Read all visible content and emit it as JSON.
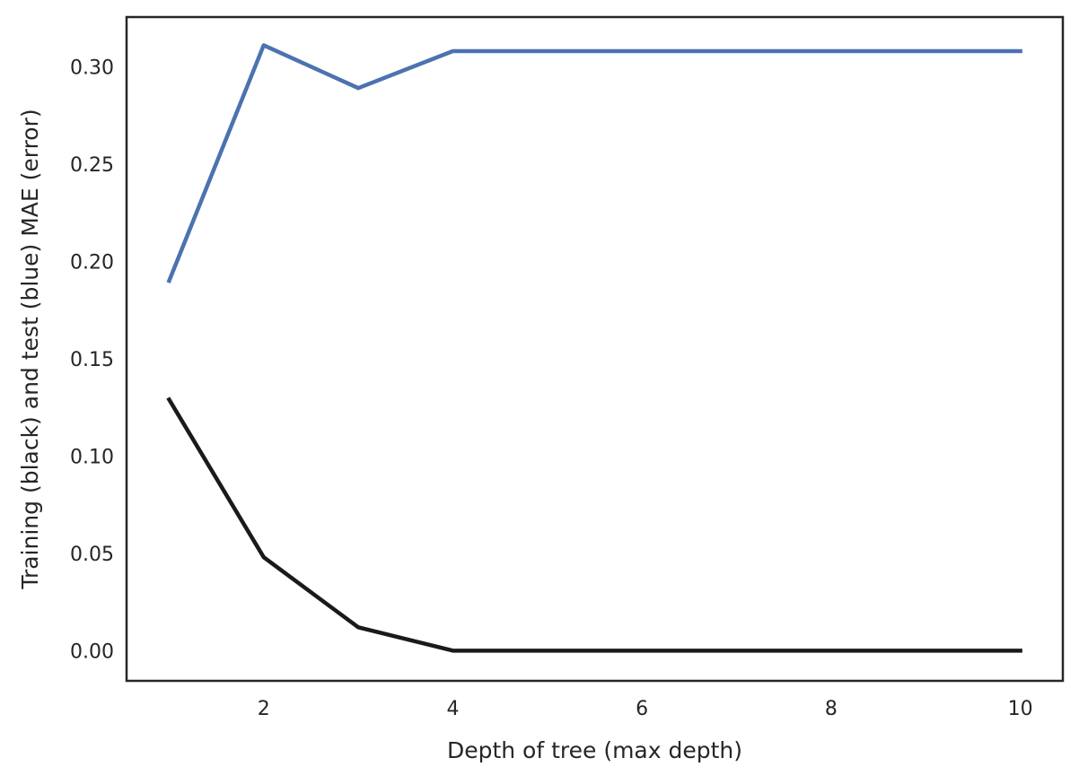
{
  "chart_data": {
    "type": "line",
    "title": "",
    "xlabel": "Depth of tree (max depth)",
    "ylabel": "Training (black) and test (blue) MAE (error)",
    "x": [
      1,
      2,
      3,
      4,
      5,
      6,
      7,
      8,
      9,
      10
    ],
    "xlim": [
      0.55,
      10.45
    ],
    "ylim": [
      -0.0155,
      0.3255
    ],
    "xticks": [
      2,
      4,
      6,
      8,
      10
    ],
    "xtick_labels": [
      "2",
      "4",
      "6",
      "8",
      "10"
    ],
    "yticks": [
      0.0,
      0.05,
      0.1,
      0.15,
      0.2,
      0.25,
      0.3
    ],
    "ytick_labels": [
      "0.00",
      "0.05",
      "0.10",
      "0.15",
      "0.20",
      "0.25",
      "0.30"
    ],
    "grid": false,
    "legend": "none",
    "series": [
      {
        "color": "#4c72b0",
        "values": [
          0.19,
          0.311,
          0.289,
          0.308,
          0.308,
          0.308,
          0.308,
          0.308,
          0.308,
          0.308
        ]
      },
      {
        "color": "#1a1a1a",
        "values": [
          0.129,
          0.048,
          0.012,
          0.0,
          0.0,
          0.0,
          0.0,
          0.0,
          0.0,
          0.0
        ]
      }
    ]
  }
}
